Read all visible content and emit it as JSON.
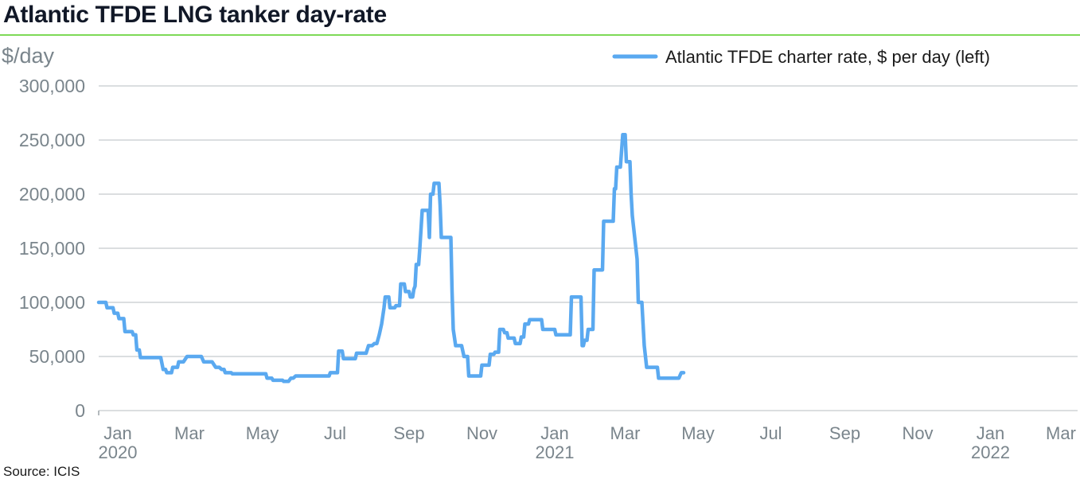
{
  "title": "Atlantic TFDE LNG tanker day-rate",
  "source": "Source: ICIS",
  "colors": {
    "line": "#5aa9f0",
    "grid": "#cfd3d6",
    "axis_text": "#7a858c",
    "title_rule": "#7ed957"
  },
  "chart_data": {
    "type": "line",
    "title": "Atlantic TFDE LNG tanker day-rate",
    "ylabel": "$/day",
    "ylim": [
      0,
      300000
    ],
    "yticks": [
      0,
      50000,
      100000,
      150000,
      200000,
      250000,
      300000
    ],
    "ytick_labels": [
      "0",
      "50,000",
      "100,000",
      "150,000",
      "200,000",
      "250,000",
      "300,000"
    ],
    "xlim": [
      "2020-01-01",
      "2022-03-31"
    ],
    "xticks": [
      {
        "date": "2020-01-01",
        "label": "Jan",
        "year": "2020"
      },
      {
        "date": "2020-03-01",
        "label": "Mar"
      },
      {
        "date": "2020-05-01",
        "label": "May"
      },
      {
        "date": "2020-07-01",
        "label": "Jul"
      },
      {
        "date": "2020-09-01",
        "label": "Sep"
      },
      {
        "date": "2020-11-01",
        "label": "Nov"
      },
      {
        "date": "2021-01-01",
        "label": "Jan",
        "year": "2021"
      },
      {
        "date": "2021-03-01",
        "label": "Mar"
      },
      {
        "date": "2021-05-01",
        "label": "May"
      },
      {
        "date": "2021-07-01",
        "label": "Jul"
      },
      {
        "date": "2021-09-01",
        "label": "Sep"
      },
      {
        "date": "2021-11-01",
        "label": "Nov"
      },
      {
        "date": "2022-01-01",
        "label": "Jan",
        "year": "2022"
      },
      {
        "date": "2022-03-01",
        "label": "Mar"
      }
    ],
    "grid": true,
    "legend_position": "top-right",
    "series": [
      {
        "name": "Atlantic TFDE charter rate, $ per day (left)",
        "points": [
          [
            "2020-01-01",
            100000
          ],
          [
            "2020-01-07",
            100000
          ],
          [
            "2020-01-08",
            95000
          ],
          [
            "2020-01-13",
            95000
          ],
          [
            "2020-01-14",
            90000
          ],
          [
            "2020-01-17",
            90000
          ],
          [
            "2020-01-18",
            85000
          ],
          [
            "2020-01-22",
            85000
          ],
          [
            "2020-01-23",
            73000
          ],
          [
            "2020-01-29",
            73000
          ],
          [
            "2020-01-30",
            70000
          ],
          [
            "2020-02-01",
            70000
          ],
          [
            "2020-02-02",
            56000
          ],
          [
            "2020-02-04",
            56000
          ],
          [
            "2020-02-05",
            49000
          ],
          [
            "2020-02-22",
            49000
          ],
          [
            "2020-02-24",
            38000
          ],
          [
            "2020-02-26",
            38000
          ],
          [
            "2020-02-27",
            35000
          ],
          [
            "2020-03-02",
            35000
          ],
          [
            "2020-03-03",
            40000
          ],
          [
            "2020-03-07",
            40000
          ],
          [
            "2020-03-08",
            45000
          ],
          [
            "2020-03-12",
            45000
          ],
          [
            "2020-03-15",
            50000
          ],
          [
            "2020-03-27",
            50000
          ],
          [
            "2020-03-29",
            45000
          ],
          [
            "2020-04-05",
            45000
          ],
          [
            "2020-04-08",
            40000
          ],
          [
            "2020-04-11",
            40000
          ],
          [
            "2020-04-13",
            38000
          ],
          [
            "2020-04-15",
            38000
          ],
          [
            "2020-04-16",
            35000
          ],
          [
            "2020-04-21",
            35000
          ],
          [
            "2020-04-22",
            34000
          ],
          [
            "2020-05-20",
            34000
          ],
          [
            "2020-05-21",
            30000
          ],
          [
            "2020-05-25",
            30000
          ],
          [
            "2020-05-26",
            28000
          ],
          [
            "2020-06-03",
            28000
          ],
          [
            "2020-06-04",
            27000
          ],
          [
            "2020-06-08",
            27000
          ],
          [
            "2020-06-10",
            30000
          ],
          [
            "2020-06-12",
            30000
          ],
          [
            "2020-06-14",
            32000
          ],
          [
            "2020-07-12",
            32000
          ],
          [
            "2020-07-13",
            35000
          ],
          [
            "2020-07-19",
            35000
          ],
          [
            "2020-07-20",
            55000
          ],
          [
            "2020-07-23",
            55000
          ],
          [
            "2020-07-24",
            48000
          ],
          [
            "2020-08-03",
            48000
          ],
          [
            "2020-08-04",
            53000
          ],
          [
            "2020-08-12",
            53000
          ],
          [
            "2020-08-14",
            60000
          ],
          [
            "2020-08-17",
            60000
          ],
          [
            "2020-08-19",
            62000
          ],
          [
            "2020-08-21",
            62000
          ],
          [
            "2020-08-23",
            70000
          ],
          [
            "2020-08-25",
            80000
          ],
          [
            "2020-08-27",
            95000
          ],
          [
            "2020-08-28",
            105000
          ],
          [
            "2020-08-31",
            105000
          ],
          [
            "2020-09-01",
            95000
          ],
          [
            "2020-09-05",
            95000
          ],
          [
            "2020-09-06",
            97000
          ],
          [
            "2020-09-09",
            97000
          ],
          [
            "2020-09-10",
            117000
          ],
          [
            "2020-09-13",
            117000
          ],
          [
            "2020-09-14",
            110000
          ],
          [
            "2020-09-17",
            110000
          ],
          [
            "2020-09-18",
            105000
          ],
          [
            "2020-09-20",
            105000
          ],
          [
            "2020-09-21",
            112000
          ],
          [
            "2020-09-22",
            115000
          ],
          [
            "2020-09-23",
            135000
          ],
          [
            "2020-09-25",
            135000
          ],
          [
            "2020-09-26",
            150000
          ],
          [
            "2020-09-28",
            185000
          ],
          [
            "2020-10-03",
            185000
          ],
          [
            "2020-10-04",
            160000
          ],
          [
            "2020-10-05",
            200000
          ],
          [
            "2020-10-07",
            200000
          ],
          [
            "2020-10-08",
            210000
          ],
          [
            "2020-10-12",
            210000
          ],
          [
            "2020-10-13",
            190000
          ],
          [
            "2020-10-14",
            160000
          ],
          [
            "2020-10-22",
            160000
          ],
          [
            "2020-10-23",
            110000
          ],
          [
            "2020-10-24",
            75000
          ],
          [
            "2020-10-26",
            60000
          ],
          [
            "2020-10-31",
            60000
          ],
          [
            "2020-11-02",
            50000
          ],
          [
            "2020-11-05",
            50000
          ],
          [
            "2020-11-06",
            32000
          ],
          [
            "2020-11-16",
            32000
          ],
          [
            "2020-11-17",
            42000
          ],
          [
            "2020-11-23",
            42000
          ],
          [
            "2020-11-24",
            52000
          ],
          [
            "2020-11-27",
            52000
          ],
          [
            "2020-11-28",
            54000
          ],
          [
            "2020-12-01",
            54000
          ],
          [
            "2020-12-02",
            75000
          ],
          [
            "2020-12-05",
            75000
          ],
          [
            "2020-12-06",
            72000
          ],
          [
            "2020-12-08",
            72000
          ],
          [
            "2020-12-09",
            67000
          ],
          [
            "2020-12-14",
            67000
          ],
          [
            "2020-12-15",
            62000
          ],
          [
            "2020-12-19",
            62000
          ],
          [
            "2020-12-20",
            68000
          ],
          [
            "2020-12-22",
            68000
          ],
          [
            "2020-12-23",
            80000
          ],
          [
            "2020-12-26",
            80000
          ],
          [
            "2020-12-27",
            84000
          ],
          [
            "2021-01-06",
            84000
          ],
          [
            "2021-01-07",
            75000
          ],
          [
            "2021-01-17",
            75000
          ],
          [
            "2021-01-18",
            70000
          ],
          [
            "2021-01-30",
            70000
          ],
          [
            "2021-01-31",
            105000
          ],
          [
            "2021-02-08",
            105000
          ],
          [
            "2021-02-09",
            60000
          ],
          [
            "2021-02-10",
            60000
          ],
          [
            "2021-02-11",
            65000
          ],
          [
            "2021-02-13",
            65000
          ],
          [
            "2021-02-14",
            75000
          ],
          [
            "2021-02-18",
            75000
          ],
          [
            "2021-02-19",
            130000
          ],
          [
            "2021-02-26",
            130000
          ],
          [
            "2021-02-27",
            175000
          ],
          [
            "2021-03-07",
            175000
          ],
          [
            "2021-03-08",
            205000
          ],
          [
            "2021-03-09",
            205000
          ],
          [
            "2021-03-10",
            225000
          ],
          [
            "2021-03-13",
            225000
          ],
          [
            "2021-03-14",
            240000
          ],
          [
            "2021-03-15",
            255000
          ],
          [
            "2021-03-17",
            255000
          ],
          [
            "2021-03-18",
            230000
          ],
          [
            "2021-03-21",
            230000
          ],
          [
            "2021-03-22",
            200000
          ],
          [
            "2021-03-23",
            180000
          ],
          [
            "2021-03-25",
            160000
          ],
          [
            "2021-03-27",
            140000
          ],
          [
            "2021-03-28",
            100000
          ],
          [
            "2021-03-31",
            100000
          ],
          [
            "2021-04-02",
            60000
          ],
          [
            "2021-04-04",
            40000
          ],
          [
            "2021-04-13",
            40000
          ],
          [
            "2021-04-14",
            30000
          ],
          [
            "2021-05-01",
            30000
          ],
          [
            "2021-05-03",
            35000
          ],
          [
            "2021-05-05",
            35000
          ]
        ]
      }
    ]
  }
}
